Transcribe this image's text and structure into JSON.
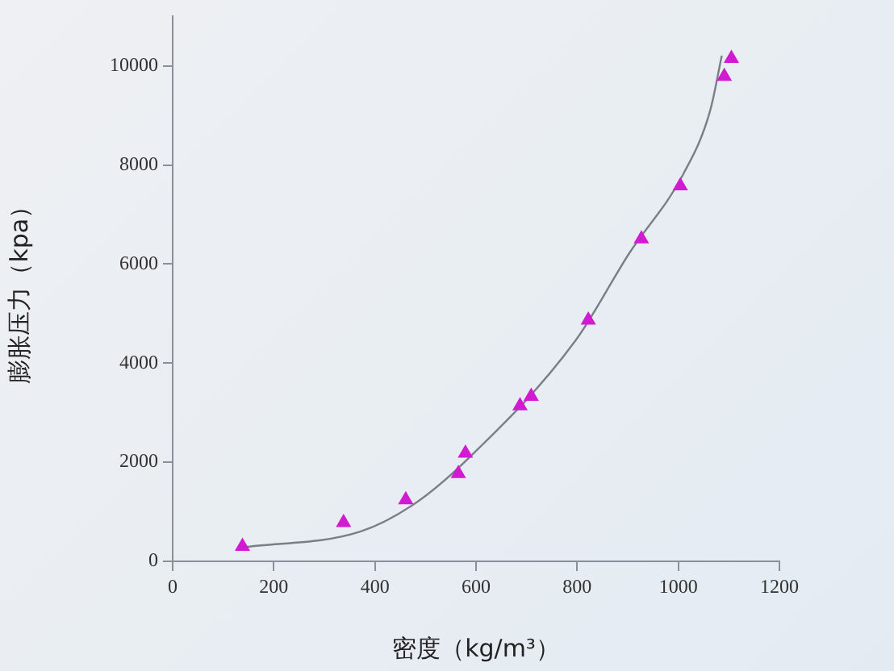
{
  "chart_data": {
    "type": "scatter",
    "xlabel": "密度（kg/m³）",
    "ylabel": "膨胀压力（kpa）",
    "xlim": [
      0,
      1200
    ],
    "ylim": [
      0,
      11000
    ],
    "xticks": [
      0,
      200,
      400,
      600,
      800,
      1000,
      1200
    ],
    "yticks": [
      0,
      2000,
      4000,
      6000,
      8000,
      10000
    ],
    "grid": false,
    "legend": false,
    "marker": "triangle",
    "series": [
      {
        "color": "#d21ad2",
        "x": [
          138,
          338,
          461,
          565,
          579,
          687,
          709,
          822,
          927,
          1004,
          1091,
          1105
        ],
        "values": [
          300,
          780,
          1240,
          1770,
          2180,
          3140,
          3330,
          4870,
          6510,
          7580,
          9790,
          10150
        ]
      },
      {
        "type": "line",
        "color": "#7a7f86",
        "marker": "none",
        "line_style": "solid",
        "x": [
          138,
          371,
          478,
          584,
          797,
          903,
          1010,
          1063,
          1086
        ],
        "values": [
          280,
          600,
          1160,
          2070,
          4460,
          6220,
          7820,
          9100,
          10210
        ]
      }
    ]
  }
}
